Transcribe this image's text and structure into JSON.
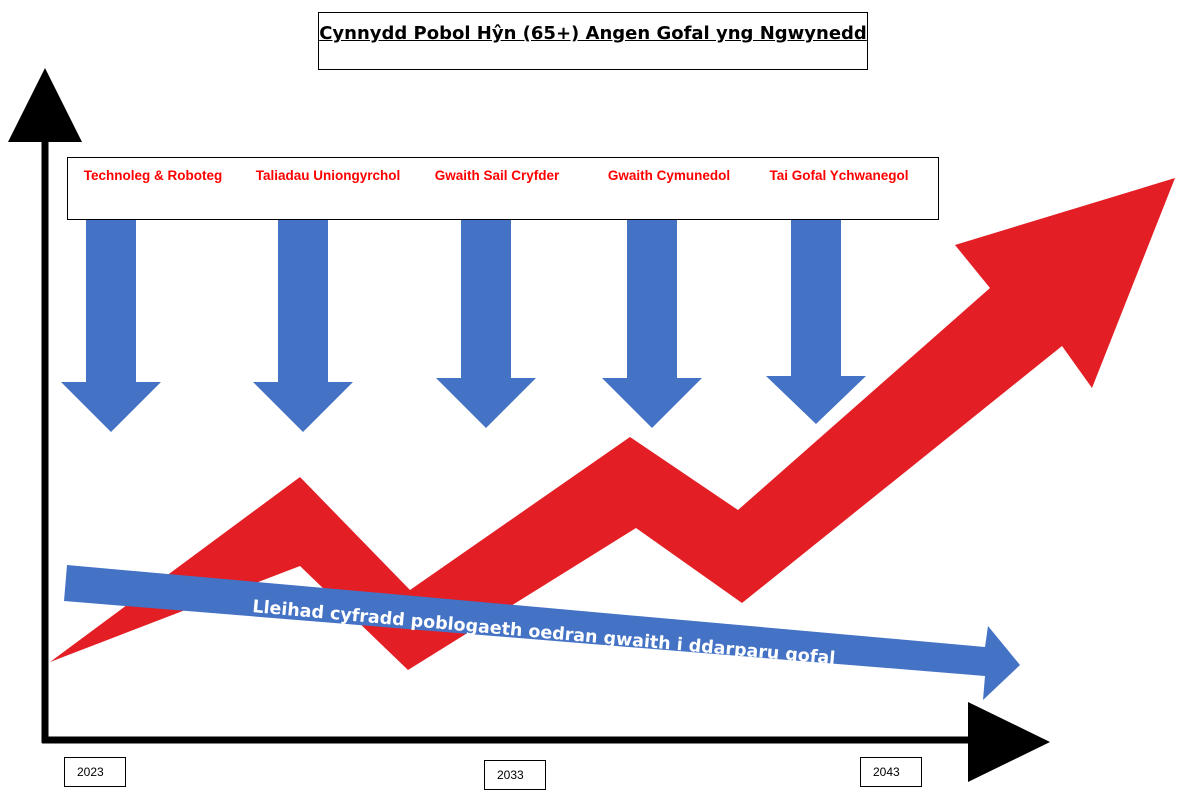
{
  "title": "Cynnydd Pobol Hŷn (65+) Angen Gofal yng Ngwynedd",
  "strategies": [
    "Technoleg & Roboteg",
    "Taliadau Uniongyrchol",
    "Gwaith Sail Cryfder",
    "Gwaith Cymunedol",
    "Tai Gofal Ychwanegol"
  ],
  "workforce_arrow_label": "Lleihad cyfradd poblogaeth oedran gwaith i ddarparu gofal",
  "years": [
    "2023",
    "2033",
    "2043"
  ],
  "colors": {
    "demand_arrow": "#e31e24",
    "strategy_arrows": "#4472c4",
    "workforce_arrow": "#4472c4",
    "strategy_text": "#ff0000",
    "axes": "#000000"
  }
}
